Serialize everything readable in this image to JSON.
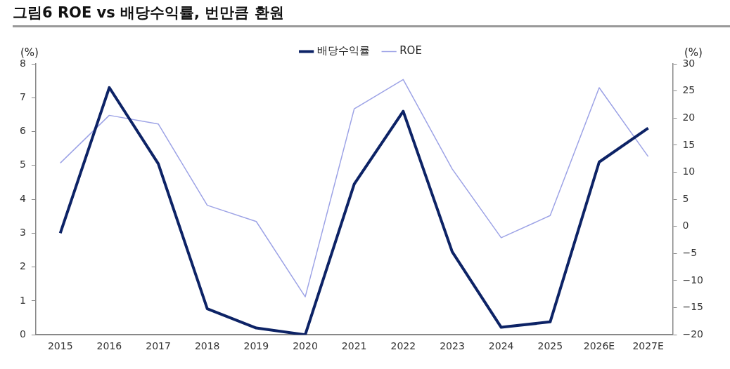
{
  "chart_data": {
    "type": "line",
    "title": "그림6 ROE vs 배당수익률, 번만큼 환원",
    "ylabel": "(%)",
    "y2label": "(%)",
    "categories": [
      "2015",
      "2016",
      "2017",
      "2018",
      "2019",
      "2020",
      "2021",
      "2022",
      "2023",
      "2024",
      "2025",
      "2026E",
      "2027E"
    ],
    "series": [
      {
        "name": "배당수익률",
        "color": "#0d2366",
        "values": [
          3.0,
          7.3,
          5.05,
          0.77,
          0.2,
          0.0,
          4.45,
          6.6,
          2.45,
          0.22,
          0.38,
          5.1,
          6.1
        ]
      },
      {
        "name": "ROE",
        "color": "#9da3e6",
        "axis": "y2",
        "values": [
          11.7,
          20.5,
          18.9,
          3.9,
          0.9,
          -13.0,
          21.7,
          27.1,
          10.6,
          -2.1,
          2.0,
          25.6,
          12.9
        ]
      }
    ],
    "ylim": [
      0,
      8
    ],
    "yticks": [
      0,
      1,
      2,
      3,
      4,
      5,
      6,
      7,
      8
    ],
    "y2lim": [
      -20,
      30
    ],
    "y2ticks": [
      -20,
      -15,
      -10,
      -5,
      0,
      5,
      10,
      15,
      20,
      25,
      30
    ],
    "grid": false,
    "legend": "top",
    "marker": "none",
    "line_style": "solid"
  }
}
